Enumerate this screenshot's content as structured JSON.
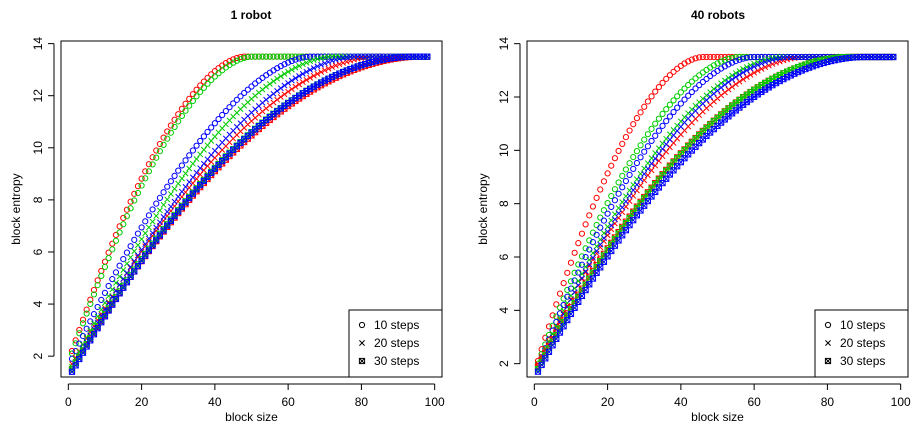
{
  "chart_data": [
    {
      "type": "scatter",
      "title": "1 robot",
      "xlabel": "block size",
      "ylabel": "block entropy",
      "xlim": [
        -2,
        102
      ],
      "ylim": [
        1.2,
        14.1
      ],
      "xticks": [
        0,
        20,
        40,
        60,
        80,
        100
      ],
      "yticks": [
        2,
        4,
        6,
        8,
        10,
        12,
        14
      ],
      "grid": false,
      "legend_position": "bottom-right",
      "legend": [
        {
          "label": "10 steps",
          "marker": "circle"
        },
        {
          "label": "20 steps",
          "marker": "cross"
        },
        {
          "label": "30 steps",
          "marker": "boxed-x"
        }
      ],
      "series": [
        {
          "color": "#ff0000",
          "marker": "circle",
          "x_start": 1,
          "x_end": 98,
          "x_step": 1,
          "y_start": 2.2,
          "y_max": 13.5,
          "saturation_x": 48,
          "shape": 1.7
        },
        {
          "color": "#00cc00",
          "marker": "circle",
          "x_start": 1,
          "x_end": 98,
          "x_step": 1,
          "y_start": 2.1,
          "y_max": 13.5,
          "saturation_x": 50,
          "shape": 1.7
        },
        {
          "color": "#0000ff",
          "marker": "circle",
          "x_start": 1,
          "x_end": 98,
          "x_step": 1,
          "y_start": 1.9,
          "y_max": 13.5,
          "saturation_x": 66,
          "shape": 1.65
        },
        {
          "color": "#ff0000",
          "marker": "cross",
          "x_start": 1,
          "x_end": 98,
          "x_step": 1,
          "y_start": 1.7,
          "y_max": 13.5,
          "saturation_x": 84,
          "shape": 1.75
        },
        {
          "color": "#00cc00",
          "marker": "cross",
          "x_start": 1,
          "x_end": 98,
          "x_step": 1,
          "y_start": 1.6,
          "y_max": 13.5,
          "saturation_x": 72,
          "shape": 1.7
        },
        {
          "color": "#0000ff",
          "marker": "cross",
          "x_start": 1,
          "x_end": 98,
          "x_step": 1,
          "y_start": 1.5,
          "y_max": 13.5,
          "saturation_x": 78,
          "shape": 1.7
        },
        {
          "color": "#ff0000",
          "marker": "boxed-x",
          "x_start": 1,
          "x_end": 98,
          "x_step": 1,
          "y_start": 1.5,
          "y_max": 13.5,
          "saturation_x": 96,
          "shape": 1.9
        },
        {
          "color": "#00cc00",
          "marker": "boxed-x",
          "x_start": 1,
          "x_end": 98,
          "x_step": 1,
          "y_start": 1.5,
          "y_max": 13.5,
          "saturation_x": 94,
          "shape": 1.9
        },
        {
          "color": "#0000ff",
          "marker": "boxed-x",
          "x_start": 1,
          "x_end": 98,
          "x_step": 1,
          "y_start": 1.4,
          "y_max": 13.5,
          "saturation_x": 94,
          "shape": 1.9
        }
      ]
    },
    {
      "type": "scatter",
      "title": "40 robots",
      "xlabel": "block size",
      "ylabel": "block entropy",
      "xlim": [
        -2,
        102
      ],
      "ylim": [
        1.5,
        14.1
      ],
      "xticks": [
        0,
        20,
        40,
        60,
        80,
        100
      ],
      "yticks": [
        2,
        4,
        6,
        8,
        10,
        12,
        14
      ],
      "grid": false,
      "legend_position": "bottom-right",
      "legend": [
        {
          "label": "10 steps",
          "marker": "circle"
        },
        {
          "label": "20 steps",
          "marker": "cross"
        },
        {
          "label": "30 steps",
          "marker": "boxed-x"
        }
      ],
      "series": [
        {
          "color": "#ff0000",
          "marker": "circle",
          "x_start": 1,
          "x_end": 98,
          "x_step": 1,
          "y_start": 2.1,
          "y_max": 13.5,
          "saturation_x": 46,
          "shape": 1.75
        },
        {
          "color": "#00cc00",
          "marker": "circle",
          "x_start": 1,
          "x_end": 98,
          "x_step": 1,
          "y_start": 2.0,
          "y_max": 13.5,
          "saturation_x": 56,
          "shape": 1.75
        },
        {
          "color": "#0000ff",
          "marker": "circle",
          "x_start": 1,
          "x_end": 98,
          "x_step": 1,
          "y_start": 1.9,
          "y_max": 13.5,
          "saturation_x": 60,
          "shape": 1.75
        },
        {
          "color": "#ff0000",
          "marker": "cross",
          "x_start": 1,
          "x_end": 98,
          "x_step": 1,
          "y_start": 2.0,
          "y_max": 13.5,
          "saturation_x": 74,
          "shape": 1.8
        },
        {
          "color": "#00cc00",
          "marker": "cross",
          "x_start": 1,
          "x_end": 98,
          "x_step": 1,
          "y_start": 1.9,
          "y_max": 13.5,
          "saturation_x": 68,
          "shape": 1.8
        },
        {
          "color": "#0000ff",
          "marker": "cross",
          "x_start": 1,
          "x_end": 98,
          "x_step": 1,
          "y_start": 1.8,
          "y_max": 13.5,
          "saturation_x": 70,
          "shape": 1.8
        },
        {
          "color": "#ff0000",
          "marker": "boxed-x",
          "x_start": 1,
          "x_end": 98,
          "x_step": 1,
          "y_start": 1.9,
          "y_max": 13.5,
          "saturation_x": 86,
          "shape": 1.9
        },
        {
          "color": "#00cc00",
          "marker": "boxed-x",
          "x_start": 1,
          "x_end": 98,
          "x_step": 1,
          "y_start": 1.8,
          "y_max": 13.5,
          "saturation_x": 86,
          "shape": 1.9
        },
        {
          "color": "#0000ff",
          "marker": "boxed-x",
          "x_start": 1,
          "x_end": 98,
          "x_step": 1,
          "y_start": 1.7,
          "y_max": 13.5,
          "saturation_x": 90,
          "shape": 1.9
        }
      ]
    }
  ]
}
